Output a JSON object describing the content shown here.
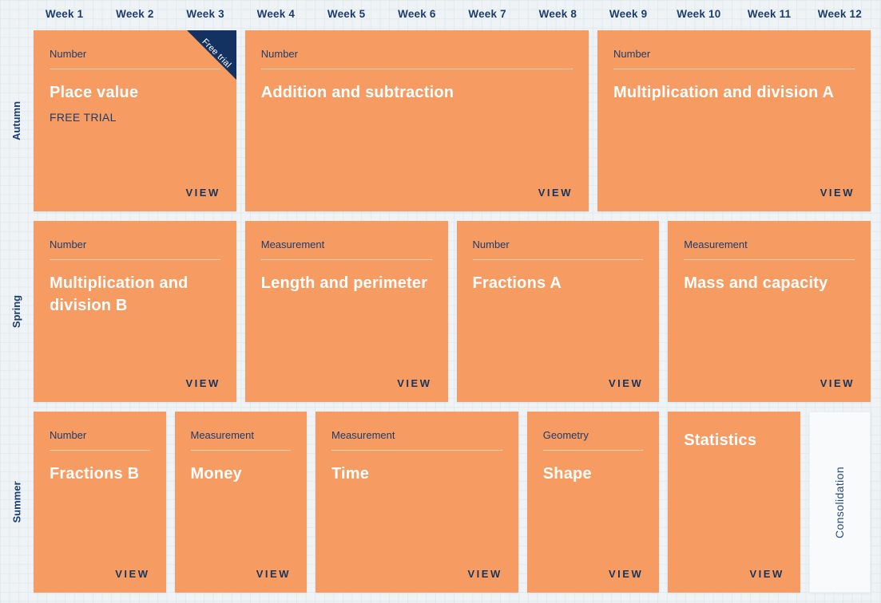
{
  "weeks": [
    "Week 1",
    "Week 2",
    "Week 3",
    "Week 4",
    "Week 5",
    "Week 6",
    "Week 7",
    "Week 8",
    "Week 9",
    "Week 10",
    "Week 11",
    "Week 12"
  ],
  "view_label": "VIEW",
  "terms": [
    {
      "label": "Autumn",
      "blocks": [
        {
          "category": "Number",
          "title": "Place value",
          "subtitle": "FREE TRIAL",
          "ribbon": "Free trial",
          "action": "VIEW",
          "span": 3,
          "variant": "standard"
        },
        {
          "category": "Number",
          "title": "Addition and subtraction",
          "action": "VIEW",
          "span": 5,
          "variant": "standard"
        },
        {
          "category": "Number",
          "title": "Multiplication and division A",
          "action": "VIEW",
          "span": 4,
          "variant": "standard"
        }
      ]
    },
    {
      "label": "Spring",
      "blocks": [
        {
          "category": "Number",
          "title": "Multiplication and division B",
          "action": "VIEW",
          "span": 3,
          "variant": "standard"
        },
        {
          "category": "Measurement",
          "title": "Length and perimeter",
          "action": "VIEW",
          "span": 3,
          "variant": "standard"
        },
        {
          "category": "Number",
          "title": "Fractions A",
          "action": "VIEW",
          "span": 3,
          "variant": "standard"
        },
        {
          "category": "Measurement",
          "title": "Mass and capacity",
          "action": "VIEW",
          "span": 3,
          "variant": "standard"
        }
      ]
    },
    {
      "label": "Summer",
      "blocks": [
        {
          "category": "Number",
          "title": "Fractions B",
          "action": "VIEW",
          "span": 2,
          "variant": "standard"
        },
        {
          "category": "Measurement",
          "title": "Money",
          "action": "VIEW",
          "span": 2,
          "variant": "standard"
        },
        {
          "category": "Measurement",
          "title": "Time",
          "action": "VIEW",
          "span": 3,
          "variant": "standard"
        },
        {
          "category": "Geometry",
          "title": "Shape",
          "action": "VIEW",
          "span": 2,
          "variant": "standard"
        },
        {
          "title": "Statistics",
          "action": "VIEW",
          "span": 2,
          "variant": "title-only"
        },
        {
          "title": "Consolidation",
          "span": 1,
          "variant": "consolidation"
        }
      ]
    }
  ],
  "colors": {
    "card_orange": "#f69b61",
    "navy_text": "#1d3c6e",
    "ribbon_navy": "#143261",
    "title_white": "#ffffff",
    "background": "#eff3f5",
    "grid_line": "#e0ebee",
    "consolidation_bg": "#f9fafb"
  }
}
